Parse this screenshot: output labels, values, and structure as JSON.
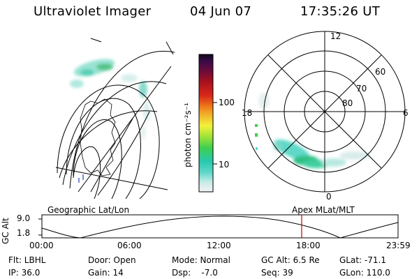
{
  "header": {
    "instrument": "Ultraviolet Imager",
    "date": "04 Jun 07",
    "time": "17:35:26 UT"
  },
  "colorbar": {
    "unit_label": "photon cm⁻²s⁻¹",
    "ticks": [
      "100",
      "10"
    ]
  },
  "polar_plot": {
    "mlt_labels": [
      "12",
      "18",
      "6",
      "0"
    ],
    "lat_labels": [
      "60",
      "70",
      "80"
    ]
  },
  "timeline": {
    "left_label": "Geographic Lat/Lon",
    "right_label": "Apex MLat/MLT",
    "y_axis_label": "GC Alt",
    "y_ticks": [
      "9.0",
      "1.8"
    ],
    "x_ticks": [
      "00:00",
      "06:00",
      "12:00",
      "18:00",
      "23:59"
    ],
    "current_time_color": "#cc0000"
  },
  "status": {
    "filter": "Flt: LBHL",
    "ip": "IP: 36.0",
    "door": "Door: Open",
    "gain": "Gain: 14",
    "mode": "Mode: Normal",
    "dsp": "Dsp:    -7.0",
    "gc_alt": "GC Alt: 6.5 Re",
    "seq": "Seq: 39",
    "glat": "GLat: -71.1",
    "glon": "GLon: 110.0"
  }
}
